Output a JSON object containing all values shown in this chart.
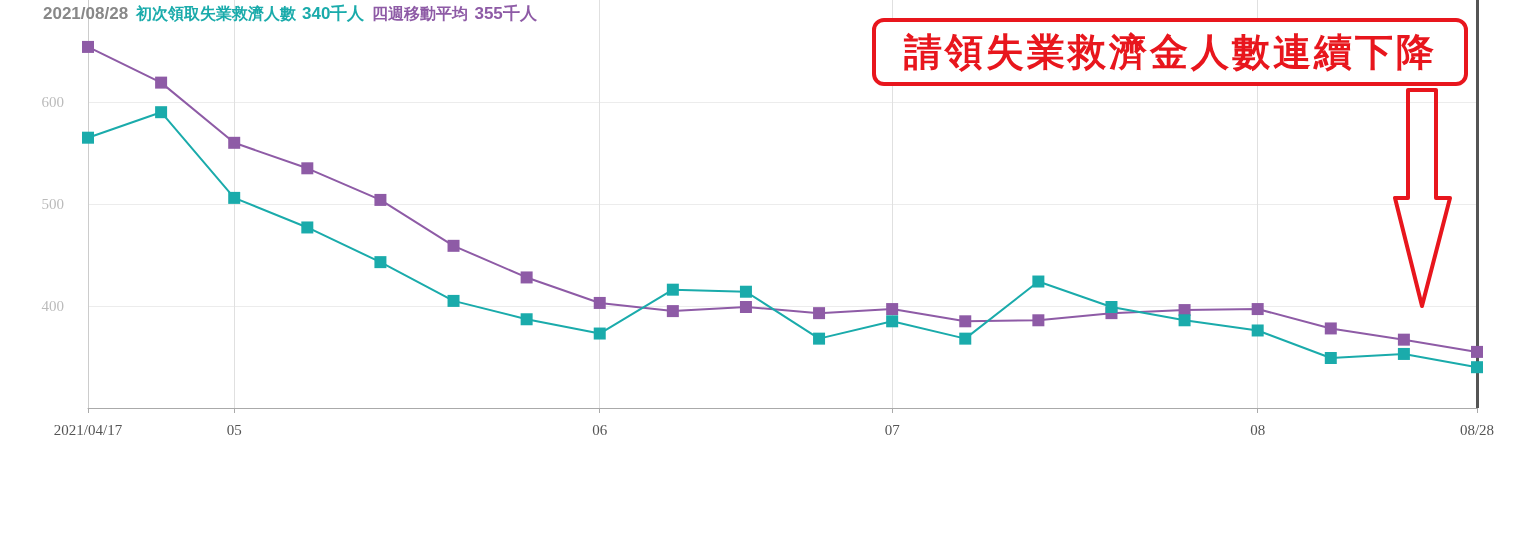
{
  "chart_data": {
    "type": "line",
    "title": "2021/08/28",
    "categories": [
      "2021/04/17",
      null,
      "05",
      null,
      null,
      null,
      null,
      "06",
      null,
      null,
      null,
      "07",
      null,
      null,
      null,
      null,
      "08",
      null,
      null,
      "08/28"
    ],
    "series": [
      {
        "name": "初次領取失業救濟人數",
        "color": "#1aabab",
        "values": [
          565,
          590,
          506,
          477,
          443,
          405,
          387,
          373,
          416,
          414,
          368,
          385,
          368,
          424,
          399,
          386,
          376,
          349,
          353,
          340
        ]
      },
      {
        "name": "四週移動平均",
        "color": "#8e5ba6",
        "values": [
          654,
          619,
          560,
          535,
          504,
          459,
          428,
          403,
          395,
          399,
          393,
          397,
          385,
          386,
          393,
          396,
          397,
          378,
          367,
          355
        ]
      }
    ],
    "annotations": [
      "340千人",
      "355千人",
      "請領失業救濟金人數連續下降"
    ],
    "ylim": [
      300,
      700
    ],
    "yticks": [
      400,
      500,
      600
    ],
    "grid": true,
    "marker": "square",
    "line_style": "solid",
    "legend": "top left",
    "ref_lines": [
      {
        "axis": "x",
        "value": "08/28",
        "label": null,
        "color": "#555555"
      }
    ]
  }
}
